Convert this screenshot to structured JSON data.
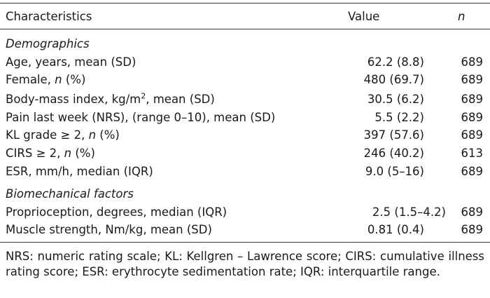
{
  "table": {
    "header": {
      "characteristics": "Characteristics",
      "value": "Value",
      "n": "n"
    },
    "sections": [
      {
        "title": "Demographics",
        "rows": [
          {
            "pre": "Age, years, mean (SD)",
            "value": "62.2 (8.8)",
            "n": "689"
          },
          {
            "pre": "Female, ",
            "italic": "n",
            "post": " (%)",
            "value": "480 (69.7)",
            "n": "689"
          },
          {
            "pre": "Body-mass index, kg/m",
            "sup": "2",
            "post": ", mean (SD)",
            "value": "30.5 (6.2)",
            "n": "689"
          },
          {
            "pre": "Pain last week (NRS), (range 0–10), mean (SD)",
            "value": "5.5 (2.2)",
            "n": "689"
          },
          {
            "pre": "KL grade ≥ 2, ",
            "italic": "n",
            "post": " (%)",
            "value": "397 (57.6)",
            "n": "689"
          },
          {
            "pre": "CIRS ≥ 2, ",
            "italic": "n",
            "post": " (%)",
            "value": "246 (40.2)",
            "n": "613"
          },
          {
            "pre": "ESR, mm/h, median (IQR)",
            "value": "9.0 (5–16)",
            "n": "689"
          }
        ]
      },
      {
        "title": "Biomechanical factors",
        "rows": [
          {
            "pre": "Proprioception, degrees, median (IQR)",
            "value": "2.5 (1.5–4.2)",
            "n": "689"
          },
          {
            "pre": "Muscle strength, Nm/kg, mean (SD)",
            "value": "0.81 (0.4)",
            "n": "689"
          }
        ]
      }
    ]
  },
  "footnote": "NRS: numeric rating scale; KL: Kellgren – Lawrence score; CIRS: cumulative illness rating score; ESR: erythrocyte sedimentation rate; IQR: interquartile range."
}
